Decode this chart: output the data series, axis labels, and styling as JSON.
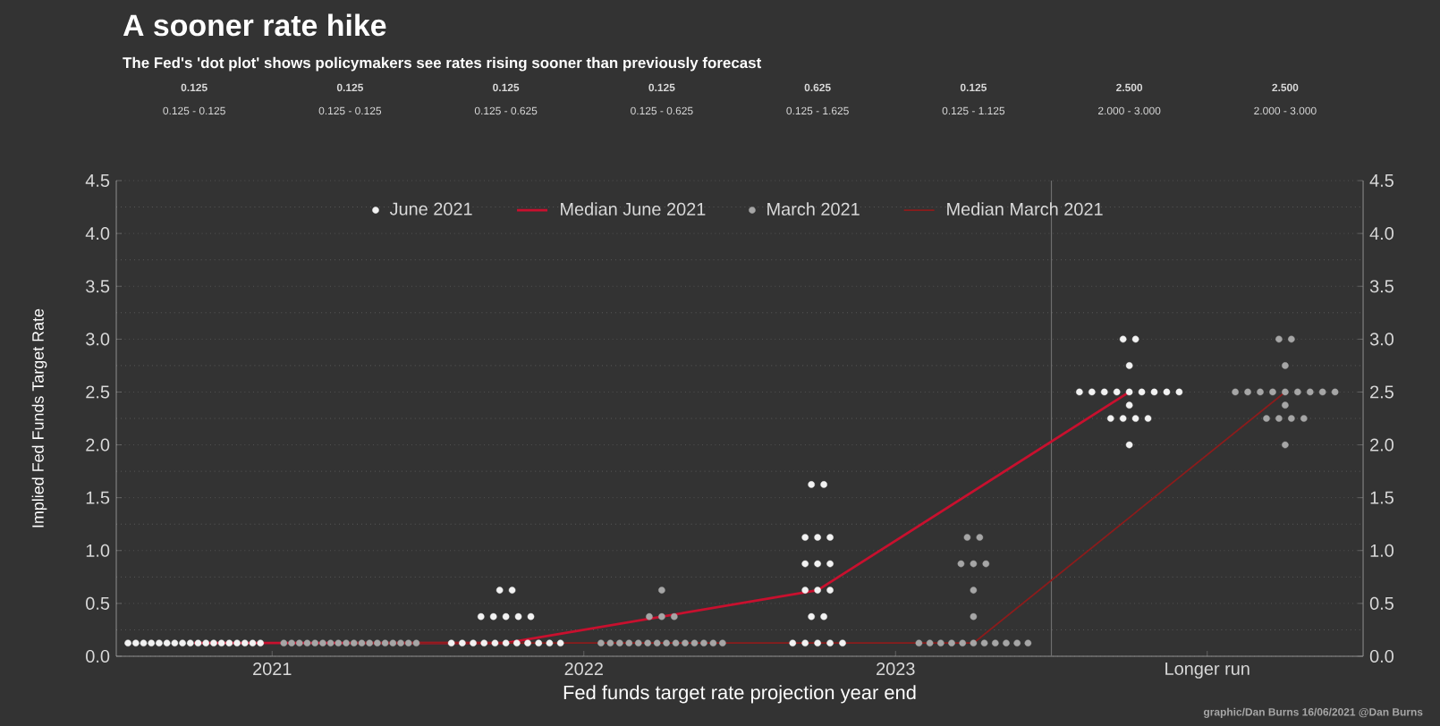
{
  "chart_data": {
    "type": "scatter",
    "title": "A sooner rate hike",
    "subtitle": "The Fed's 'dot plot' shows policymakers see rates rising sooner than previously forecast",
    "xlabel": "Fed funds target rate projection year end",
    "ylabel": "Implied Fed Funds Target Rate",
    "xlim": [
      2020.5,
      2024.5
    ],
    "xticks": [
      2021,
      2022,
      2023,
      {
        "value": 2024,
        "label": "Longer run"
      }
    ],
    "ylim": [
      0,
      4.5
    ],
    "yticks": [
      {
        "value": 0,
        "label": "0.0"
      },
      {
        "value": 0.5,
        "label": "0.5"
      },
      {
        "value": 1,
        "label": "1.0"
      },
      {
        "value": 1.5,
        "label": "1.5"
      },
      {
        "value": 2,
        "label": "2.0"
      },
      {
        "value": 2.5,
        "label": "2.5"
      },
      {
        "value": 3,
        "label": "3.0"
      },
      {
        "value": 3.5,
        "label": "3.5"
      },
      {
        "value": 4,
        "label": "4.0"
      },
      {
        "value": 4.5,
        "label": "4.5"
      }
    ],
    "y2lim": [
      0,
      4.5
    ],
    "y2ticks": [
      {
        "value": 0,
        "label": "0.0"
      },
      {
        "value": 0.5,
        "label": "0.5"
      },
      {
        "value": 1,
        "label": "1.0"
      },
      {
        "value": 1.5,
        "label": "1.5"
      },
      {
        "value": 2,
        "label": "2.0"
      },
      {
        "value": 2.5,
        "label": "2.5"
      },
      {
        "value": 3,
        "label": "3.0"
      },
      {
        "value": 3.5,
        "label": "3.5"
      },
      {
        "value": 4,
        "label": "4.0"
      },
      {
        "value": 4.5,
        "label": "4.5"
      }
    ],
    "grid": "y",
    "legend": "top",
    "marker": "circle",
    "ref_lines": [
      {
        "axis": "x",
        "value": 2023.5,
        "color": "#6e6e6e"
      }
    ],
    "series": [
      {
        "name": "June 2021",
        "color": "#f2f2f2",
        "x": [
          2020.5375,
          2020.5625,
          2020.5875,
          2020.6125,
          2020.6375,
          2020.6625,
          2020.6875,
          2020.7125,
          2020.7375,
          2020.7625,
          2020.7875,
          2020.8125,
          2020.8375,
          2020.8625,
          2020.8875,
          2020.9125,
          2020.9375,
          2020.9625,
          2021.73,
          2021.77,
          2021.67,
          2021.71,
          2021.75,
          2021.79,
          2021.83,
          2021.575,
          2021.61,
          2021.645,
          2021.68,
          2021.715,
          2021.75,
          2021.785,
          2021.82,
          2021.855,
          2021.89,
          2021.925,
          2022.73,
          2022.77,
          2022.71,
          2022.75,
          2022.79,
          2022.71,
          2022.75,
          2022.79,
          2022.71,
          2022.75,
          2022.79,
          2022.73,
          2022.77,
          2022.67,
          2022.71,
          2022.75,
          2022.79,
          2022.83,
          2023.73,
          2023.77,
          2023.75,
          2023.59,
          2023.63,
          2023.67,
          2023.71,
          2023.75,
          2023.79,
          2023.83,
          2023.87,
          2023.91,
          2023.75,
          2023.69,
          2023.73,
          2023.77,
          2023.81,
          2023.75
        ],
        "values": [
          0.125,
          0.125,
          0.125,
          0.125,
          0.125,
          0.125,
          0.125,
          0.125,
          0.125,
          0.125,
          0.125,
          0.125,
          0.125,
          0.125,
          0.125,
          0.125,
          0.125,
          0.125,
          0.625,
          0.625,
          0.375,
          0.375,
          0.375,
          0.375,
          0.375,
          0.125,
          0.125,
          0.125,
          0.125,
          0.125,
          0.125,
          0.125,
          0.125,
          0.125,
          0.125,
          0.125,
          1.625,
          1.625,
          1.125,
          1.125,
          1.125,
          0.875,
          0.875,
          0.875,
          0.625,
          0.625,
          0.625,
          0.375,
          0.375,
          0.125,
          0.125,
          0.125,
          0.125,
          0.125,
          3.0,
          3.0,
          2.75,
          2.5,
          2.5,
          2.5,
          2.5,
          2.5,
          2.5,
          2.5,
          2.5,
          2.5,
          2.375,
          2.25,
          2.25,
          2.25,
          2.25,
          2.0
        ]
      },
      {
        "name": "Median June 2021",
        "type": "line",
        "marker": "none",
        "color": "#c8102e",
        "x": [
          2020.75,
          2021.75,
          2022.75,
          2023.75
        ],
        "values": [
          0.125,
          0.125,
          0.625,
          2.5
        ]
      },
      {
        "name": "March 2021",
        "color": "#a6a6a6",
        "x": [
          2021.0375,
          2021.0625,
          2021.0875,
          2021.1125,
          2021.1375,
          2021.1625,
          2021.1875,
          2021.2125,
          2021.2375,
          2021.2625,
          2021.2875,
          2021.3125,
          2021.3375,
          2021.3625,
          2021.3875,
          2021.4125,
          2021.4375,
          2021.4625,
          2022.25,
          2022.21,
          2022.25,
          2022.29,
          2022.055,
          2022.085,
          2022.115,
          2022.145,
          2022.175,
          2022.205,
          2022.235,
          2022.265,
          2022.295,
          2022.325,
          2022.355,
          2022.385,
          2022.415,
          2022.445,
          2023.23,
          2023.27,
          2023.21,
          2023.25,
          2023.29,
          2023.25,
          2023.25,
          2023.075,
          2023.11,
          2023.145,
          2023.18,
          2023.215,
          2023.25,
          2023.285,
          2023.32,
          2023.355,
          2023.39,
          2023.425,
          2024.23,
          2024.27,
          2024.25,
          2024.09,
          2024.13,
          2024.17,
          2024.21,
          2024.25,
          2024.29,
          2024.33,
          2024.37,
          2024.41,
          2024.25,
          2024.19,
          2024.23,
          2024.27,
          2024.31,
          2024.25
        ],
        "values": [
          0.125,
          0.125,
          0.125,
          0.125,
          0.125,
          0.125,
          0.125,
          0.125,
          0.125,
          0.125,
          0.125,
          0.125,
          0.125,
          0.125,
          0.125,
          0.125,
          0.125,
          0.125,
          0.625,
          0.375,
          0.375,
          0.375,
          0.125,
          0.125,
          0.125,
          0.125,
          0.125,
          0.125,
          0.125,
          0.125,
          0.125,
          0.125,
          0.125,
          0.125,
          0.125,
          0.125,
          1.125,
          1.125,
          0.875,
          0.875,
          0.875,
          0.625,
          0.375,
          0.125,
          0.125,
          0.125,
          0.125,
          0.125,
          0.125,
          0.125,
          0.125,
          0.125,
          0.125,
          0.125,
          3.0,
          3.0,
          2.75,
          2.5,
          2.5,
          2.5,
          2.5,
          2.5,
          2.5,
          2.5,
          2.5,
          2.5,
          2.375,
          2.25,
          2.25,
          2.25,
          2.25,
          2.0
        ]
      },
      {
        "name": "Median March 2021",
        "type": "line",
        "marker": "none",
        "color": "#8b1c1c",
        "x": [
          2021.25,
          2022.25,
          2023.25,
          2024.25
        ],
        "values": [
          0.125,
          0.125,
          0.125,
          2.5
        ]
      }
    ],
    "annotations": [
      "0.125",
      "0.125",
      "0.125",
      "0.125",
      "0.625",
      "0.125",
      "2.500",
      "2.500",
      "0.125 - 0.125",
      "0.125 - 0.125",
      "0.125 - 0.625",
      "0.125 - 0.625",
      "0.125 - 1.625",
      "0.125 - 1.125",
      "2.000 - 3.000",
      "2.000 - 3.000",
      "graphic/Dan Burns 16/06/2021 @Dan Burns"
    ]
  }
}
